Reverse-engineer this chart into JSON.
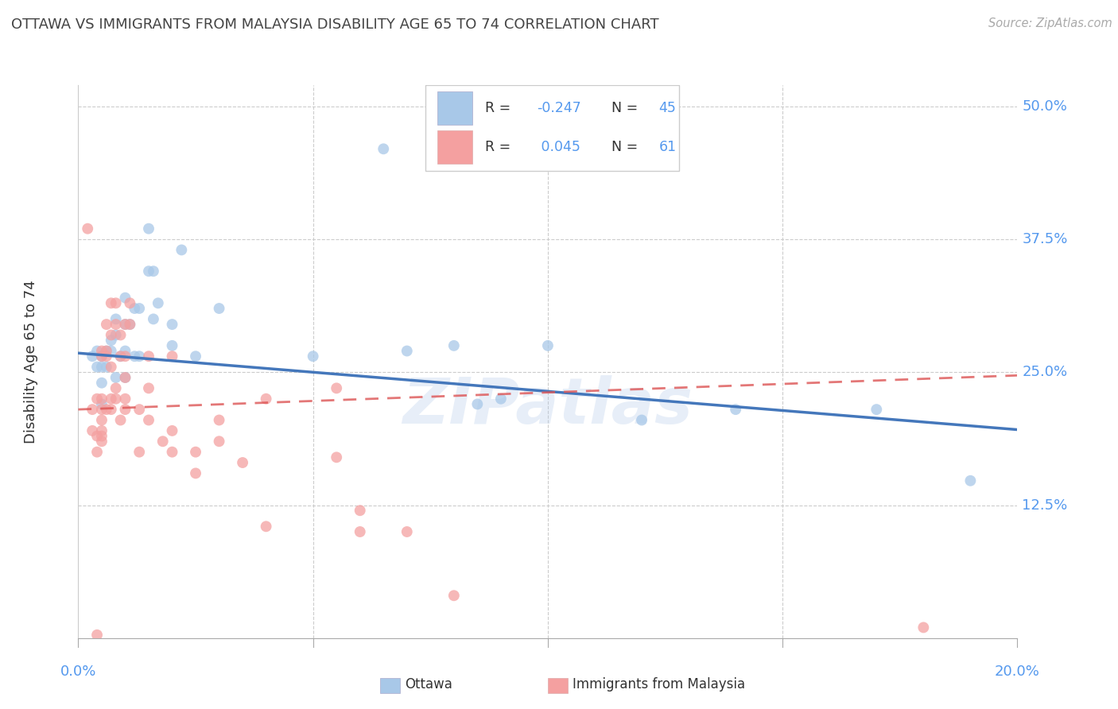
{
  "title": "OTTAWA VS IMMIGRANTS FROM MALAYSIA DISABILITY AGE 65 TO 74 CORRELATION CHART",
  "source": "Source: ZipAtlas.com",
  "ylabel": "Disability Age 65 to 74",
  "xlim": [
    0.0,
    0.2
  ],
  "ylim": [
    0.0,
    0.52
  ],
  "ytick_labels": [
    "12.5%",
    "25.0%",
    "37.5%",
    "50.0%"
  ],
  "yticks": [
    0.125,
    0.25,
    0.375,
    0.5
  ],
  "ottawa_color": "#a8c8e8",
  "malaysia_color": "#f4a0a0",
  "ottawa_line_color": "#4477bb",
  "malaysia_line_color": "#dd5555",
  "ottawa_R": -0.247,
  "ottawa_N": 45,
  "malaysia_R": 0.045,
  "malaysia_N": 61,
  "ottawa_scatter_x": [
    0.003,
    0.004,
    0.004,
    0.005,
    0.005,
    0.005,
    0.005,
    0.006,
    0.006,
    0.007,
    0.007,
    0.008,
    0.008,
    0.008,
    0.009,
    0.01,
    0.01,
    0.01,
    0.01,
    0.011,
    0.012,
    0.012,
    0.013,
    0.013,
    0.015,
    0.015,
    0.016,
    0.016,
    0.017,
    0.02,
    0.02,
    0.022,
    0.025,
    0.03,
    0.05,
    0.065,
    0.07,
    0.08,
    0.085,
    0.09,
    0.1,
    0.12,
    0.14,
    0.17,
    0.19
  ],
  "ottawa_scatter_y": [
    0.265,
    0.255,
    0.27,
    0.24,
    0.22,
    0.265,
    0.255,
    0.27,
    0.255,
    0.27,
    0.28,
    0.245,
    0.3,
    0.285,
    0.265,
    0.32,
    0.27,
    0.245,
    0.295,
    0.295,
    0.31,
    0.265,
    0.265,
    0.31,
    0.345,
    0.385,
    0.345,
    0.3,
    0.315,
    0.295,
    0.275,
    0.365,
    0.265,
    0.31,
    0.265,
    0.46,
    0.27,
    0.275,
    0.22,
    0.225,
    0.275,
    0.205,
    0.215,
    0.215,
    0.148
  ],
  "malaysia_scatter_x": [
    0.002,
    0.003,
    0.003,
    0.004,
    0.004,
    0.004,
    0.005,
    0.005,
    0.005,
    0.005,
    0.005,
    0.005,
    0.005,
    0.005,
    0.006,
    0.006,
    0.006,
    0.006,
    0.007,
    0.007,
    0.007,
    0.007,
    0.007,
    0.008,
    0.008,
    0.008,
    0.008,
    0.009,
    0.009,
    0.009,
    0.01,
    0.01,
    0.01,
    0.01,
    0.01,
    0.011,
    0.011,
    0.013,
    0.013,
    0.015,
    0.015,
    0.015,
    0.018,
    0.02,
    0.02,
    0.02,
    0.025,
    0.025,
    0.03,
    0.03,
    0.035,
    0.04,
    0.04,
    0.055,
    0.055,
    0.06,
    0.06,
    0.07,
    0.08,
    0.18,
    0.004
  ],
  "malaysia_scatter_y": [
    0.385,
    0.215,
    0.195,
    0.225,
    0.175,
    0.19,
    0.27,
    0.265,
    0.225,
    0.215,
    0.205,
    0.19,
    0.195,
    0.185,
    0.27,
    0.265,
    0.295,
    0.215,
    0.315,
    0.285,
    0.255,
    0.225,
    0.215,
    0.315,
    0.295,
    0.235,
    0.225,
    0.285,
    0.265,
    0.205,
    0.295,
    0.265,
    0.245,
    0.225,
    0.215,
    0.315,
    0.295,
    0.215,
    0.175,
    0.265,
    0.235,
    0.205,
    0.185,
    0.265,
    0.195,
    0.175,
    0.175,
    0.155,
    0.205,
    0.185,
    0.165,
    0.225,
    0.105,
    0.235,
    0.17,
    0.1,
    0.12,
    0.1,
    0.04,
    0.01,
    0.003
  ],
  "ottawa_trend_x0": 0.0,
  "ottawa_trend_x1": 0.2,
  "ottawa_trend_y0": 0.268,
  "ottawa_trend_y1": 0.196,
  "malaysia_trend_x0": 0.0,
  "malaysia_trend_x1": 0.2,
  "malaysia_trend_y0": 0.215,
  "malaysia_trend_y1": 0.247,
  "watermark": "ZIPatlas",
  "grid_color": "#cccccc",
  "title_color": "#444444",
  "axis_color": "#5599ee",
  "text_color": "#333333"
}
